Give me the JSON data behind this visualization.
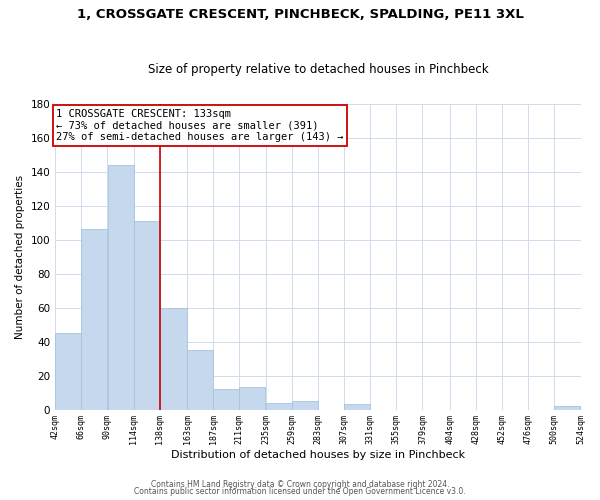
{
  "title": "1, CROSSGATE CRESCENT, PINCHBECK, SPALDING, PE11 3XL",
  "subtitle": "Size of property relative to detached houses in Pinchbeck",
  "xlabel": "Distribution of detached houses by size in Pinchbeck",
  "ylabel": "Number of detached properties",
  "bar_color": "#c5d8ed",
  "bar_edge_color": "#a8c4de",
  "reference_line_x": 138,
  "bin_edges": [
    42,
    66,
    90,
    114,
    138,
    163,
    187,
    211,
    235,
    259,
    283,
    307,
    331,
    355,
    379,
    404,
    428,
    452,
    476,
    500,
    524
  ],
  "bar_heights": [
    45,
    106,
    144,
    111,
    60,
    35,
    12,
    13,
    4,
    5,
    0,
    3,
    0,
    0,
    0,
    0,
    0,
    0,
    0,
    2
  ],
  "tick_labels": [
    "42sqm",
    "66sqm",
    "90sqm",
    "114sqm",
    "138sqm",
    "163sqm",
    "187sqm",
    "211sqm",
    "235sqm",
    "259sqm",
    "283sqm",
    "307sqm",
    "331sqm",
    "355sqm",
    "379sqm",
    "404sqm",
    "428sqm",
    "452sqm",
    "476sqm",
    "500sqm",
    "524sqm"
  ],
  "ylim": [
    0,
    180
  ],
  "yticks": [
    0,
    20,
    40,
    60,
    80,
    100,
    120,
    140,
    160,
    180
  ],
  "annotation_title": "1 CROSSGATE CRESCENT: 133sqm",
  "annotation_line1": "← 73% of detached houses are smaller (391)",
  "annotation_line2": "27% of semi-detached houses are larger (143) →",
  "annotation_box_color": "#ffffff",
  "annotation_box_edge": "#cc0000",
  "footer_line1": "Contains HM Land Registry data © Crown copyright and database right 2024.",
  "footer_line2": "Contains public sector information licensed under the Open Government Licence v3.0.",
  "background_color": "#ffffff",
  "grid_color": "#d0dcee",
  "title_fontsize": 9.5,
  "subtitle_fontsize": 8.5
}
